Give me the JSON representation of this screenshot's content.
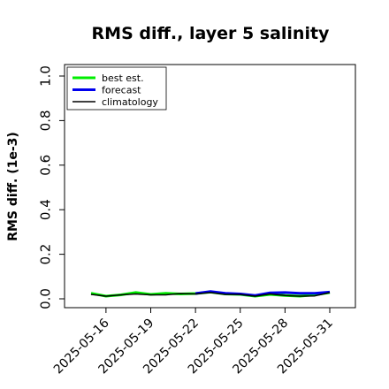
{
  "chart_data": {
    "type": "line",
    "title": "RMS diff., layer 5 salinity",
    "xlabel": "",
    "ylabel": "RMS diff. (1e-3)",
    "ylim": [
      0,
      1.0
    ],
    "yticks": [
      "0.0",
      "0.2",
      "0.4",
      "0.6",
      "0.8",
      "1.0"
    ],
    "xticks": [
      {
        "label": "2025-05-16",
        "color": "#000000"
      },
      {
        "label": "2025-05-19",
        "color": "#000000"
      },
      {
        "label": "2025-05-22",
        "color": "#008000"
      },
      {
        "label": "2025-05-25",
        "color": "#000000"
      },
      {
        "label": "2025-05-28",
        "color": "#000000"
      },
      {
        "label": "2025-05-31",
        "color": "#000000"
      }
    ],
    "legend": {
      "position": "upper-left",
      "entries": [
        "best est.",
        "forecast",
        "climatology"
      ]
    },
    "x": [
      "2025-05-15",
      "2025-05-16",
      "2025-05-17",
      "2025-05-18",
      "2025-05-19",
      "2025-05-20",
      "2025-05-21",
      "2025-05-22",
      "2025-05-23",
      "2025-05-24",
      "2025-05-25",
      "2025-05-26",
      "2025-05-27",
      "2025-05-28",
      "2025-05-29",
      "2025-05-30",
      "2025-05-31"
    ],
    "series": [
      {
        "name": "best est.",
        "color": "#00ee00",
        "width": 3,
        "values": [
          0.025,
          0.012,
          0.018,
          0.028,
          0.02,
          0.025,
          0.022,
          0.024,
          0.03,
          0.022,
          0.02,
          0.012,
          0.02,
          0.015,
          0.012,
          0.018,
          0.028
        ]
      },
      {
        "name": "forecast",
        "color": "#0000ee",
        "width": 3,
        "values": [
          null,
          null,
          null,
          null,
          null,
          null,
          null,
          0.024,
          0.033,
          0.025,
          0.022,
          0.015,
          0.027,
          0.028,
          0.025,
          0.025,
          0.03
        ]
      },
      {
        "name": "climatology",
        "color": "#000000",
        "width": 1.5,
        "values": [
          0.02,
          0.012,
          0.018,
          0.022,
          0.018,
          0.018,
          0.024,
          0.022,
          0.028,
          0.02,
          0.02,
          0.012,
          0.022,
          0.015,
          0.012,
          0.013,
          0.028
        ]
      }
    ]
  }
}
